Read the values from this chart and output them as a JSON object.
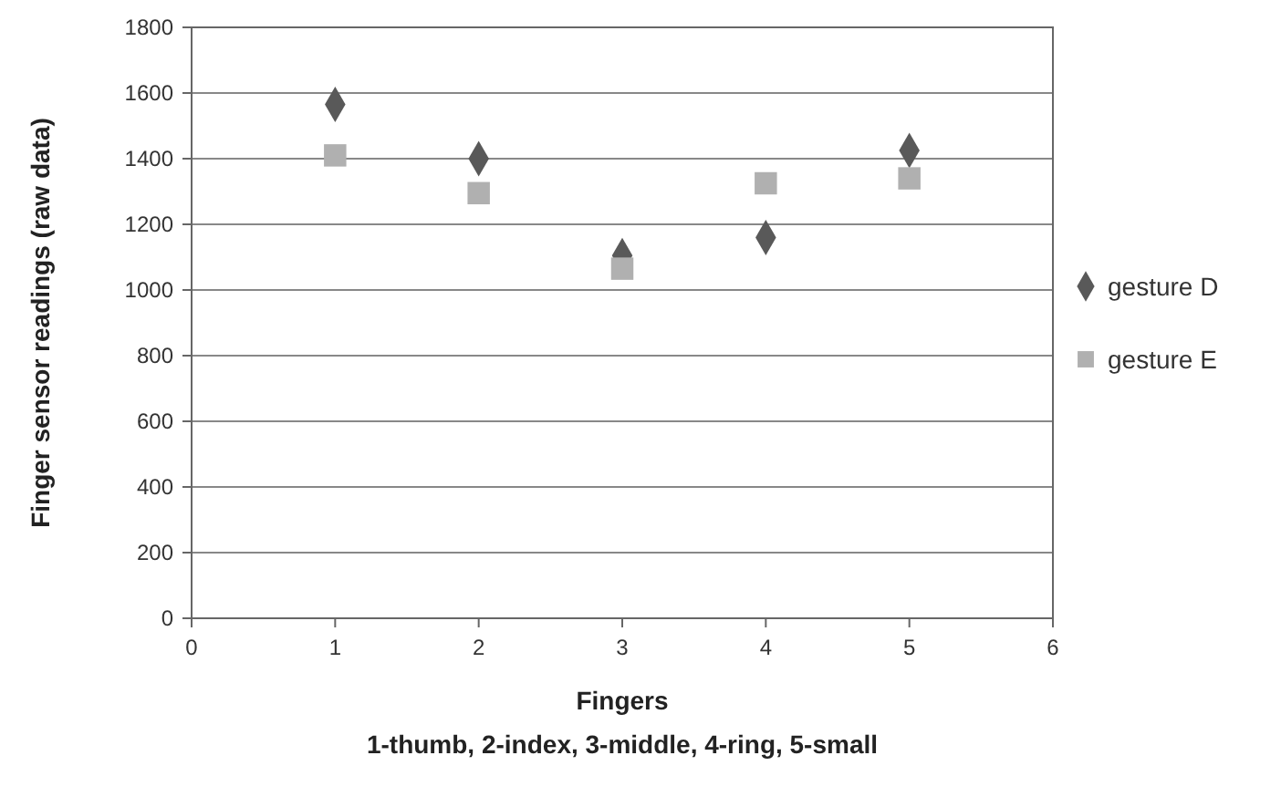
{
  "chart_data": {
    "type": "scatter",
    "xlabel": "Fingers",
    "ylabel": "Finger sensor readings (raw data)",
    "annotations": [
      "1-thumb, 2-index, 3-middle, 4-ring, 5-small"
    ],
    "x": [
      1,
      2,
      3,
      4,
      5
    ],
    "series": [
      {
        "name": "gesture D",
        "color": "#595959",
        "marker": "diamond",
        "values": [
          1565,
          1400,
          1105,
          1160,
          1425
        ]
      },
      {
        "name": "gesture E",
        "color": "#b0b0b0",
        "marker": "square",
        "values": [
          1410,
          1295,
          1065,
          1325,
          1340
        ]
      }
    ],
    "xlim": [
      0,
      6
    ],
    "xticks": [
      0,
      1,
      2,
      3,
      4,
      5,
      6
    ],
    "ylim": [
      0,
      1800
    ],
    "yticks": [
      0,
      200,
      400,
      600,
      800,
      1000,
      1200,
      1400,
      1600,
      1800
    ],
    "grid": "y",
    "legend": "right"
  }
}
